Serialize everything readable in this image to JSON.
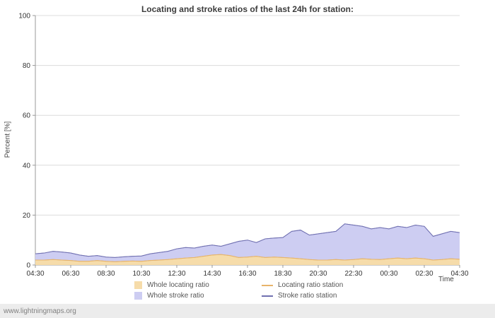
{
  "page": {
    "title": "Locating and stroke ratios of the last 24h for station:",
    "watermark": "www.lightningmaps.org"
  },
  "axes": {
    "y_label": "Percent  [%]",
    "x_label": "Time"
  },
  "legend": {
    "items": [
      {
        "label": "Whole locating ratio",
        "type": "area",
        "color": "#f6dcaa"
      },
      {
        "label": "Locating ratio station",
        "type": "line",
        "color": "#e8b46a"
      },
      {
        "label": "Whole stroke ratio",
        "type": "area",
        "color": "#cdcdf2"
      },
      {
        "label": "Stroke ratio station",
        "type": "line",
        "color": "#7070b0"
      }
    ]
  },
  "chart_data": {
    "type": "area",
    "title": "Locating and stroke ratios of the last 24h for station:",
    "xlabel": "Time",
    "ylabel": "Percent  [%]",
    "ylim": [
      0,
      100
    ],
    "y_ticks": [
      0,
      20,
      40,
      60,
      80,
      100
    ],
    "grid": true,
    "legend_position": "bottom",
    "x": [
      "04:30",
      "05:00",
      "05:30",
      "06:00",
      "06:30",
      "07:00",
      "07:30",
      "08:00",
      "08:30",
      "09:00",
      "09:30",
      "10:00",
      "10:30",
      "11:00",
      "11:30",
      "12:00",
      "12:30",
      "13:00",
      "13:30",
      "14:00",
      "14:30",
      "15:00",
      "15:30",
      "16:00",
      "16:30",
      "17:00",
      "17:30",
      "18:00",
      "18:30",
      "19:00",
      "19:30",
      "20:00",
      "20:30",
      "21:00",
      "21:30",
      "22:00",
      "22:30",
      "23:00",
      "23:30",
      "00:00",
      "00:30",
      "01:00",
      "01:30",
      "02:00",
      "02:30",
      "03:00",
      "03:30",
      "04:00",
      "04:30"
    ],
    "x_ticks": [
      "04:30",
      "06:30",
      "08:30",
      "10:30",
      "12:30",
      "14:30",
      "16:30",
      "18:30",
      "20:30",
      "22:30",
      "00:30",
      "02:30",
      "04:30"
    ],
    "series": [
      {
        "name": "Whole stroke ratio",
        "type": "area",
        "fill": "#cdcdf2",
        "stroke": "#9393cf",
        "values": [
          4.5,
          4.8,
          5.5,
          5.2,
          4.8,
          4.0,
          3.5,
          3.8,
          3.2,
          3.0,
          3.3,
          3.5,
          3.6,
          4.5,
          5.0,
          5.5,
          6.5,
          7.0,
          6.8,
          7.5,
          8.0,
          7.5,
          8.5,
          9.5,
          10.0,
          9.0,
          10.5,
          10.8,
          11.0,
          13.5,
          14.0,
          12.0,
          12.5,
          13.0,
          13.5,
          16.5,
          16.0,
          15.5,
          14.5,
          15.0,
          14.5,
          15.5,
          15.0,
          16.0,
          15.5,
          11.5,
          12.5,
          13.5,
          13.0
        ]
      },
      {
        "name": "Whole locating ratio",
        "type": "area",
        "fill": "#f6dcaa",
        "stroke": "#ddb878",
        "values": [
          2.0,
          2.0,
          2.2,
          2.0,
          1.8,
          1.5,
          1.5,
          1.8,
          1.5,
          1.3,
          1.5,
          1.6,
          1.5,
          1.8,
          2.0,
          2.2,
          2.5,
          2.8,
          3.0,
          3.5,
          4.0,
          4.2,
          3.8,
          3.0,
          3.2,
          3.5,
          3.0,
          3.2,
          3.0,
          2.8,
          2.5,
          2.2,
          2.0,
          2.0,
          2.2,
          2.0,
          2.2,
          2.5,
          2.3,
          2.2,
          2.5,
          2.8,
          2.5,
          2.8,
          2.5,
          2.0,
          2.2,
          2.5,
          2.3
        ]
      },
      {
        "name": "Stroke ratio station",
        "type": "line",
        "stroke": "#7070b0",
        "values": [
          4.5,
          4.8,
          5.5,
          5.2,
          4.8,
          4.0,
          3.5,
          3.8,
          3.2,
          3.0,
          3.3,
          3.5,
          3.6,
          4.5,
          5.0,
          5.5,
          6.5,
          7.0,
          6.8,
          7.5,
          8.0,
          7.5,
          8.5,
          9.5,
          10.0,
          9.0,
          10.5,
          10.8,
          11.0,
          13.5,
          14.0,
          12.0,
          12.5,
          13.0,
          13.5,
          16.5,
          16.0,
          15.5,
          14.5,
          15.0,
          14.5,
          15.5,
          15.0,
          16.0,
          15.5,
          11.5,
          12.5,
          13.5,
          13.0
        ]
      },
      {
        "name": "Locating ratio station",
        "type": "line",
        "stroke": "#e8b46a",
        "values": [
          2.0,
          2.0,
          2.2,
          2.0,
          1.8,
          1.5,
          1.5,
          1.8,
          1.5,
          1.3,
          1.5,
          1.6,
          1.5,
          1.8,
          2.0,
          2.2,
          2.5,
          2.8,
          3.0,
          3.5,
          4.0,
          4.2,
          3.8,
          3.0,
          3.2,
          3.5,
          3.0,
          3.2,
          3.0,
          2.8,
          2.5,
          2.2,
          2.0,
          2.0,
          2.2,
          2.0,
          2.2,
          2.5,
          2.3,
          2.2,
          2.5,
          2.8,
          2.5,
          2.8,
          2.5,
          2.0,
          2.2,
          2.5,
          2.3
        ]
      }
    ]
  }
}
